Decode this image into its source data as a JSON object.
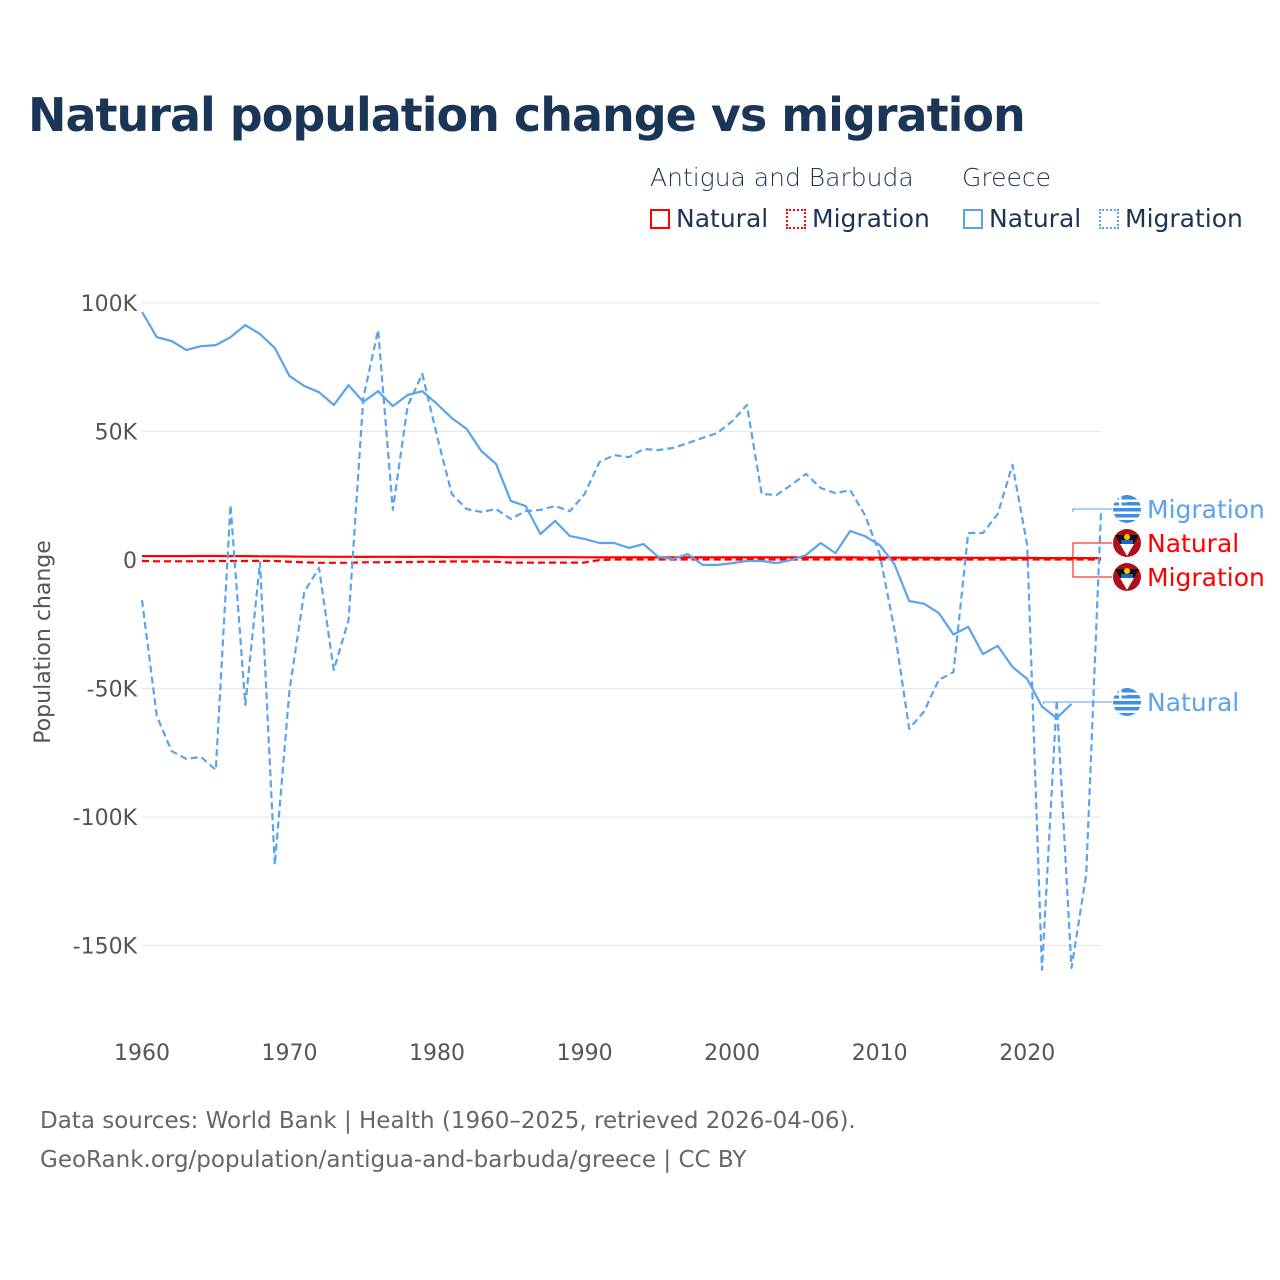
{
  "title": "Natural population change vs migration",
  "legend": {
    "groups": [
      {
        "name": "Antigua and Barbuda",
        "items": [
          "Natural",
          "Migration"
        ]
      },
      {
        "name": "Greece",
        "items": [
          "Natural",
          "Migration"
        ]
      }
    ]
  },
  "colors": {
    "antigua": "#ff0000",
    "greece": "#5ba3ec",
    "title": "#1b3556"
  },
  "footer": {
    "line1": "Data sources: World Bank | Health (1960–2025, retrieved 2026-04-06).",
    "line2": "GeoRank.org/population/antigua-and-barbuda/greece | CC BY"
  },
  "chart_data": {
    "type": "line",
    "title": "Natural population change vs migration",
    "xlabel": "",
    "ylabel": "Population change",
    "xlim": [
      1960,
      2025
    ],
    "ylim": [
      -165000,
      105000
    ],
    "x_ticks": [
      1960,
      1970,
      1980,
      1990,
      2000,
      2010,
      2020
    ],
    "x_tick_labels": [
      "1960",
      "1970",
      "1980",
      "1990",
      "2000",
      "2010",
      "2020"
    ],
    "y_ticks": [
      100000,
      50000,
      0,
      -50000,
      -100000,
      -150000
    ],
    "y_tick_labels": [
      "100K",
      "50K",
      "0",
      "-50K",
      "-100K",
      "-150K"
    ],
    "grid": true,
    "legend_placement": "top-right",
    "series": [
      {
        "name": "Greece Natural",
        "country": "Greece",
        "kind": "Natural",
        "color": "#5ba3ec",
        "dash": false,
        "start_year": 1960,
        "values": [
          96500,
          86700,
          85200,
          81700,
          83200,
          83600,
          86700,
          91400,
          87900,
          82500,
          71600,
          67700,
          65300,
          60300,
          68000,
          61500,
          65700,
          59900,
          64200,
          65700,
          60700,
          55200,
          51000,
          42400,
          37300,
          23000,
          21000,
          10100,
          15200,
          9300,
          8200,
          6600,
          6600,
          4700,
          6200,
          1200,
          400,
          2300,
          -1900,
          -1900,
          -1200,
          -400,
          -400,
          -1200,
          0,
          1900,
          6600,
          2700,
          11300,
          9300,
          5800,
          -1600,
          -16000,
          -17000,
          -20600,
          -29000,
          -26000,
          -36600,
          -33400,
          -41600,
          -46300,
          -57000,
          -61500,
          -56000
        ]
      },
      {
        "name": "Greece Migration",
        "country": "Greece",
        "kind": "Migration",
        "color": "#5ba3ec",
        "dash": true,
        "start_year": 1960,
        "values": [
          -15600,
          -60700,
          -74300,
          -77400,
          -76600,
          -81700,
          21400,
          -56400,
          -800,
          -118600,
          -50600,
          -12400,
          -3100,
          -42800,
          -23300,
          63000,
          89500,
          19500,
          59900,
          72400,
          48200,
          25700,
          19800,
          18700,
          19800,
          16000,
          19000,
          19500,
          21000,
          19000,
          25700,
          38100,
          40800,
          40000,
          43200,
          42800,
          43600,
          45500,
          47500,
          49400,
          54000,
          60300,
          25700,
          25300,
          29200,
          33500,
          28000,
          26000,
          27200,
          17500,
          2300,
          -27000,
          -65700,
          -59000,
          -46700,
          -43600,
          10500,
          10500,
          17900,
          37000,
          5800,
          -159500,
          -54500,
          -158700,
          -122500,
          18700
        ]
      },
      {
        "name": "Antigua and Barbuda Natural",
        "country": "Antigua and Barbuda",
        "kind": "Natural",
        "color": "#ff0000",
        "dash": false,
        "start_year": 1960,
        "values": [
          1500,
          1500,
          1500,
          1500,
          1550,
          1550,
          1500,
          1500,
          1450,
          1400,
          1350,
          1300,
          1300,
          1250,
          1250,
          1200,
          1250,
          1250,
          1200,
          1250,
          1200,
          1150,
          1150,
          1150,
          1150,
          1100,
          1100,
          1100,
          1100,
          1100,
          1050,
          1000,
          1000,
          1000,
          1000,
          1000,
          1000,
          1000,
          1000,
          1000,
          1000,
          1000,
          1000,
          1000,
          1000,
          1000,
          1000,
          1000,
          1000,
          950,
          950,
          950,
          900,
          900,
          850,
          850,
          850,
          850,
          800,
          800,
          800,
          750,
          750,
          750,
          750,
          700
        ]
      },
      {
        "name": "Antigua and Barbuda Migration",
        "country": "Antigua and Barbuda",
        "kind": "Migration",
        "color": "#ff0000",
        "dash": true,
        "start_year": 1960,
        "values": [
          -400,
          -500,
          -500,
          -500,
          -500,
          -400,
          -400,
          -400,
          -300,
          -400,
          -700,
          -900,
          -1100,
          -1100,
          -1100,
          -900,
          -900,
          -800,
          -800,
          -700,
          -700,
          -600,
          -600,
          -600,
          -700,
          -1000,
          -1000,
          -1000,
          -1000,
          -1000,
          -1000,
          0,
          200,
          200,
          200,
          200,
          200,
          200,
          200,
          200,
          200,
          200,
          200,
          200,
          200,
          200,
          200,
          200,
          200,
          200,
          200,
          200,
          200,
          200,
          200,
          200,
          200,
          200,
          200,
          200,
          200,
          200,
          200,
          200,
          200,
          200
        ]
      }
    ],
    "end_labels": [
      {
        "text": "Migration",
        "series": "Greece Migration"
      },
      {
        "text": "Natural",
        "series": "Antigua and Barbuda Natural"
      },
      {
        "text": "Migration",
        "series": "Antigua and Barbuda Migration"
      },
      {
        "text": "Natural",
        "series": "Greece Natural"
      }
    ]
  }
}
